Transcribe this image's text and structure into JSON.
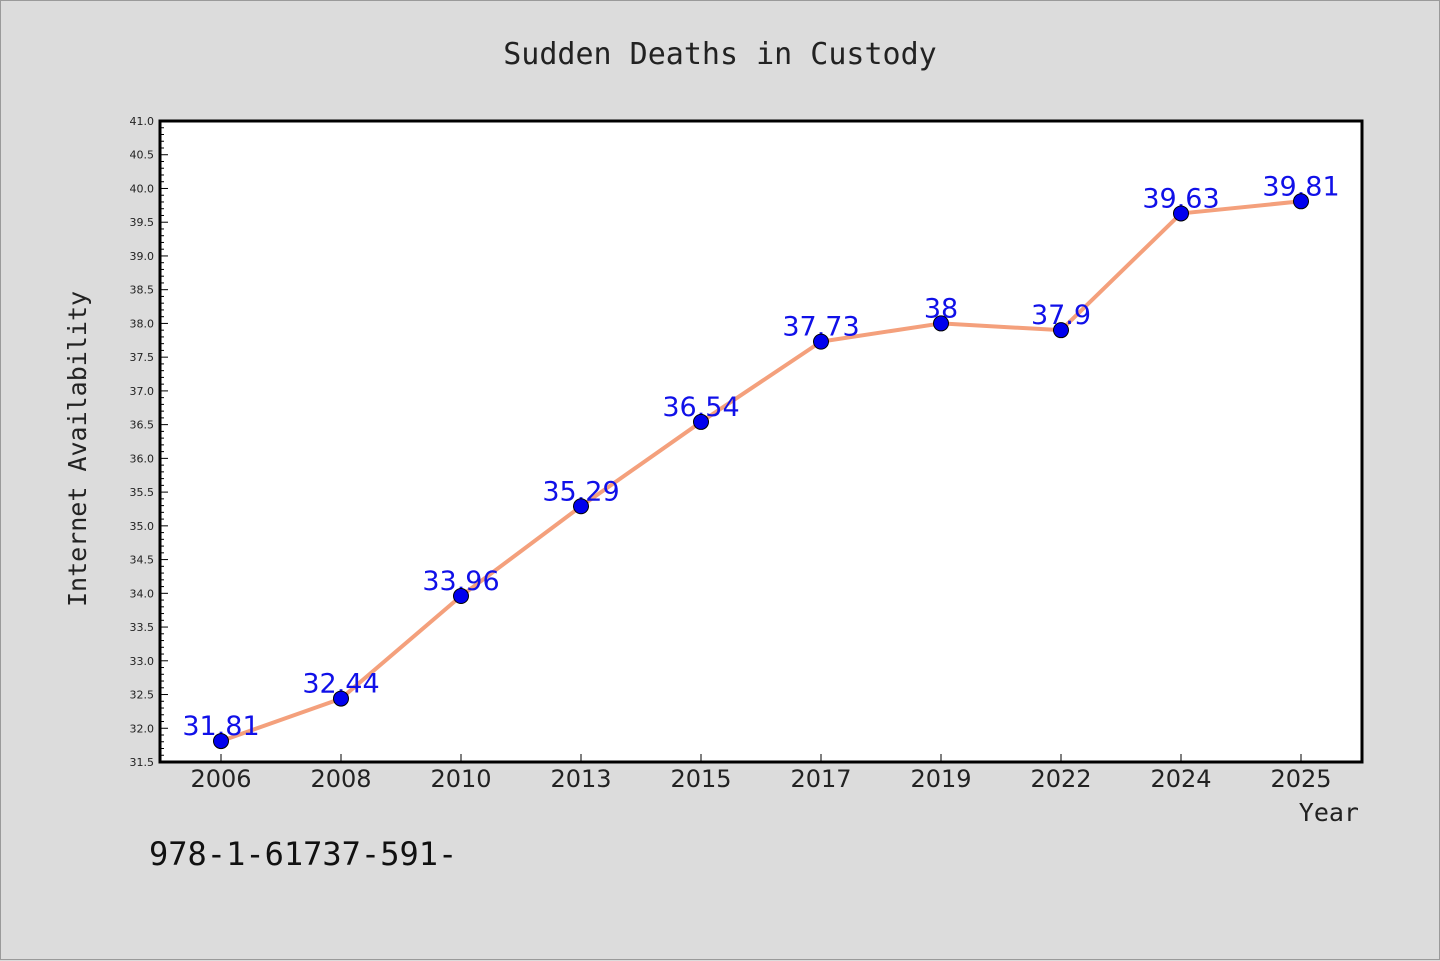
{
  "chart_data": {
    "type": "line",
    "title": "Sudden Deaths in Custody",
    "xlabel": "Year",
    "ylabel": "Internet Availability",
    "categories": [
      "2006",
      "2008",
      "2010",
      "2013",
      "2015",
      "2017",
      "2019",
      "2022",
      "2024",
      "2025"
    ],
    "series": [
      {
        "values": [
          31.81,
          32.44,
          33.96,
          35.29,
          36.54,
          37.73,
          38,
          37.9,
          39.63,
          39.81
        ],
        "data_labels": [
          "31.81",
          "32.44",
          "33.96",
          "35.29",
          "36.54",
          "37.73",
          "38",
          "37.9",
          "39.63",
          "39.81"
        ],
        "line_color": "#f4a07c",
        "marker_color": "#0000ee"
      }
    ],
    "ylim": [
      31.5,
      41.0
    ],
    "yticks": [
      "31.5",
      "32.0",
      "32.5",
      "33.0",
      "33.5",
      "34.0",
      "34.5",
      "35.0",
      "35.5",
      "36.0",
      "36.5",
      "37.0",
      "37.5",
      "38.0",
      "38.5",
      "39.0",
      "39.5",
      "40.0",
      "40.5",
      "41.0"
    ],
    "grid": false,
    "legend": "none",
    "background_color": "#dcdcdc",
    "plot_background_color": "#ffffff",
    "label_color": "#1010e8"
  },
  "footnote": "978-1-61737-591-"
}
